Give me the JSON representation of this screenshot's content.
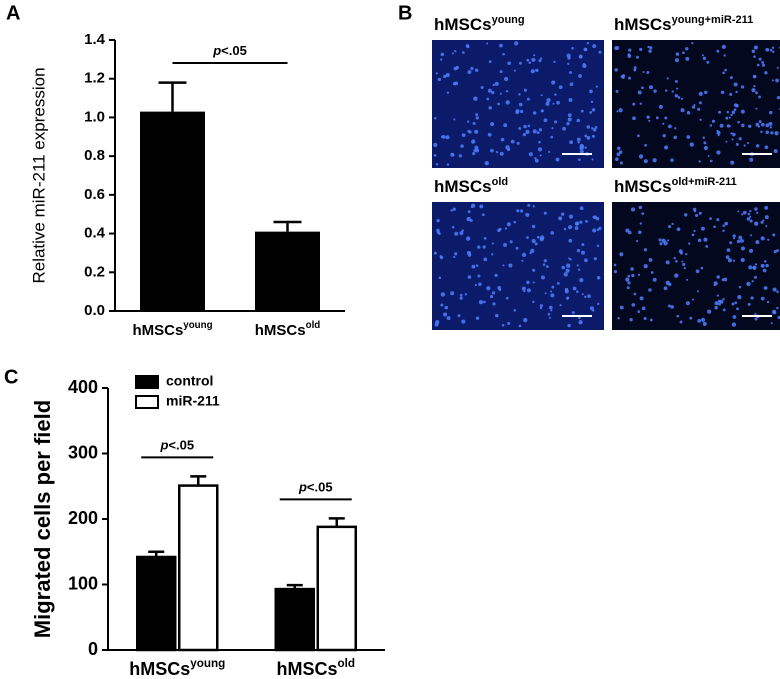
{
  "figure": {
    "panel_labels": [
      "A",
      "B",
      "C"
    ],
    "images": [
      {
        "label": "hMSCs",
        "sup": "young"
      },
      {
        "label": "hMSCs",
        "sup": "young+miR-211"
      },
      {
        "label": "hMSCs",
        "sup": "old"
      },
      {
        "label": "hMSCs",
        "sup": "old+miR-211"
      }
    ]
  },
  "chart_data": [
    {
      "type": "bar",
      "y_label": "Relative miR-211 expression",
      "categories": [
        "hMSCs",
        "hMSCs"
      ],
      "category_superscripts": [
        "young",
        "old"
      ],
      "values": [
        1.03,
        0.41
      ],
      "errors": [
        0.15,
        0.05
      ],
      "color": "#000000",
      "ylim": [
        0,
        1.4
      ],
      "yticks": [
        {
          "value": 0,
          "label": "0.0"
        },
        0.2,
        0.4,
        0.6,
        0.8,
        {
          "value": 1,
          "label": "1.0"
        },
        1.2,
        1.4
      ],
      "annotations": [
        {
          "italic": "p",
          "text": "<.05"
        }
      ]
    },
    {
      "type": "grouped-bar",
      "y_label": "Migrated cells per field",
      "categories": [
        "hMSCs",
        "hMSCs"
      ],
      "category_superscripts": [
        "young",
        "old"
      ],
      "series": [
        {
          "name": "control",
          "color": "#000000",
          "values": [
            142,
            93
          ],
          "errors": [
            8,
            6
          ]
        },
        {
          "name": "miR-211",
          "color": "#ffffff",
          "values": [
            251,
            188
          ],
          "errors": [
            14,
            13
          ]
        }
      ],
      "ylim": [
        0,
        400
      ],
      "yticks": [
        0,
        100,
        200,
        300,
        400
      ],
      "legend": "top-left",
      "annotations": [
        {
          "italic": "p",
          "text": "<.05"
        },
        {
          "italic": "p",
          "text": "<.05"
        }
      ]
    }
  ]
}
